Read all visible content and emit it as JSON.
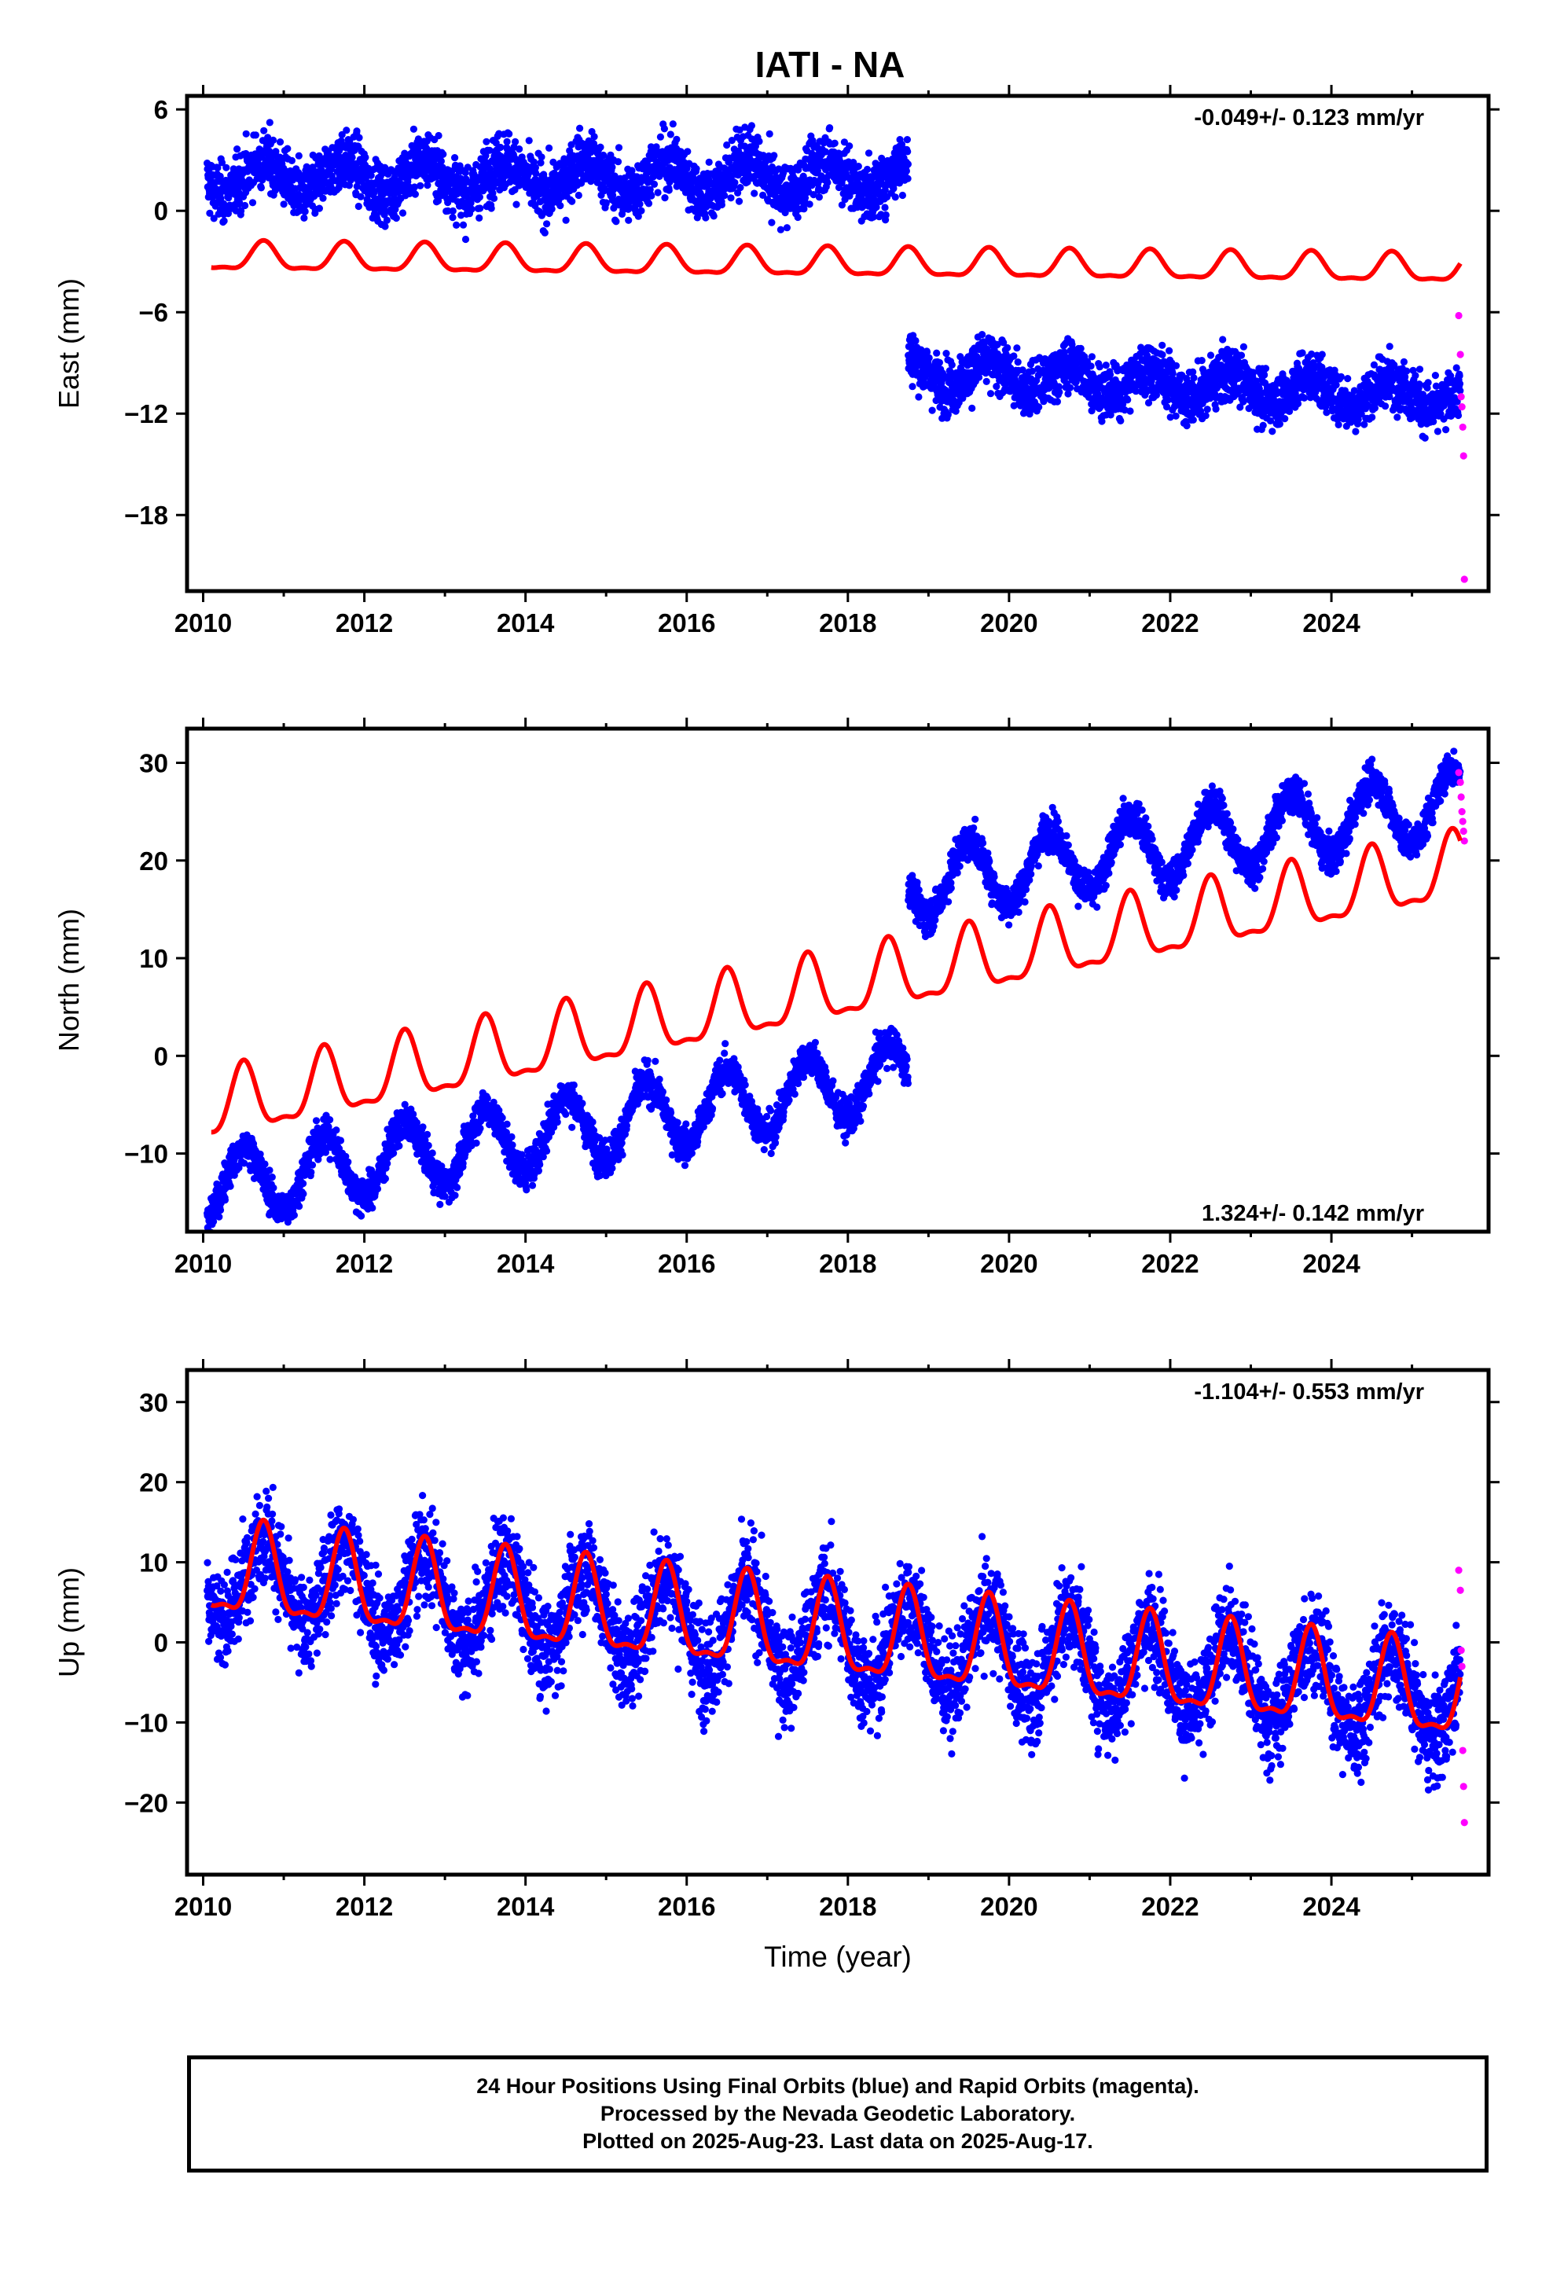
{
  "figure_title": "IATI - NA",
  "footer": {
    "line1": "24 Hour Positions Using Final Orbits (blue) and Rapid Orbits (magenta).",
    "line2": "Processed by the Nevada Geodetic Laboratory.",
    "line3": "Plotted on 2025-Aug-23. Last data on 2025-Aug-17."
  },
  "colors": {
    "final_orbits": "#0000ff",
    "rapid_orbits": "#ff00ff",
    "model": "#ff0000"
  },
  "chart_data": [
    {
      "type": "scatter",
      "ylabel": "East (mm)",
      "xlim": [
        2009.8,
        2025.95
      ],
      "ylim": [
        -22.5,
        6.8
      ],
      "x_ticks": [
        2010,
        2012,
        2014,
        2016,
        2018,
        2020,
        2022,
        2024
      ],
      "y_ticks": [
        6,
        0,
        -6,
        -12,
        -18
      ],
      "rate_annotation": "-0.049+/- 0.123 mm/yr",
      "annotation_position": "top-right",
      "grid": false,
      "offset_epoch": 2018.75,
      "series": [
        {
          "name": "Final Orbits (blue)",
          "color": "#0000ff",
          "segments": [
            {
              "start": 2010.05,
              "end": 2018.75,
              "level_start": 2.0,
              "level_end": 2.0,
              "annual_amp": 1.0,
              "noise": 1.2
            },
            {
              "start": 2018.75,
              "end": 2025.6,
              "level_start": -9.5,
              "level_end": -11.0,
              "annual_amp": 0.8,
              "noise": 1.1
            }
          ]
        },
        {
          "name": "Rapid Orbits (magenta)",
          "color": "#ff00ff",
          "x": [
            2025.58,
            2025.6,
            2025.61,
            2025.62,
            2025.63,
            2025.64,
            2025.65
          ],
          "y": [
            -6.2,
            -8.5,
            -11.0,
            -11.6,
            -12.8,
            -14.5,
            -21.8
          ]
        },
        {
          "name": "Model",
          "color": "#ff0000",
          "kind": "line",
          "start": 2010.1,
          "end": 2025.6,
          "offset_start": -2.8,
          "offset_end": -3.5,
          "annual_amp": 0.8,
          "annual_phase": 2010.75
        }
      ]
    },
    {
      "type": "scatter",
      "ylabel": "North (mm)",
      "xlim": [
        2009.8,
        2025.95
      ],
      "ylim": [
        -18,
        33.5
      ],
      "x_ticks": [
        2010,
        2012,
        2014,
        2016,
        2018,
        2020,
        2022,
        2024
      ],
      "y_ticks": [
        30,
        20,
        10,
        0,
        -10
      ],
      "rate_annotation": "1.324+/- 0.142 mm/yr",
      "annotation_position": "bottom-right",
      "grid": false,
      "offset_epoch": 2018.75,
      "series": [
        {
          "name": "Final Orbits (blue)",
          "color": "#0000ff",
          "segments": [
            {
              "start": 2010.05,
              "end": 2018.75,
              "level_start": -13.5,
              "level_end": -2.0,
              "annual_amp": 3.5,
              "noise": 1.3
            },
            {
              "start": 2018.75,
              "end": 2025.6,
              "level_start": 17.5,
              "level_end": 26.0,
              "annual_amp": 3.5,
              "noise": 1.3
            }
          ]
        },
        {
          "name": "Rapid Orbits (magenta)",
          "color": "#ff00ff",
          "x": [
            2025.58,
            2025.6,
            2025.61,
            2025.62,
            2025.63,
            2025.64,
            2025.65
          ],
          "y": [
            29.0,
            28.0,
            26.5,
            25.0,
            24.0,
            23.0,
            22.0
          ]
        },
        {
          "name": "Model",
          "color": "#ff0000",
          "kind": "line",
          "start": 2010.1,
          "end": 2025.6,
          "offset_start": -5.5,
          "offset_end": 19.0,
          "annual_amp": 3.3,
          "annual_phase": 2010.5
        }
      ]
    },
    {
      "type": "scatter",
      "ylabel": "Up (mm)",
      "xlim": [
        2009.8,
        2025.95
      ],
      "ylim": [
        -29,
        34
      ],
      "x_ticks": [
        2010,
        2012,
        2014,
        2016,
        2018,
        2020,
        2022,
        2024
      ],
      "y_ticks": [
        30,
        20,
        10,
        0,
        -10,
        -20
      ],
      "rate_annotation": "-1.104+/- 0.553 mm/yr",
      "annotation_position": "top-right",
      "xlabel": "Time (year)",
      "grid": false,
      "series": [
        {
          "name": "Final Orbits (blue)",
          "color": "#0000ff",
          "segments": [
            {
              "start": 2010.05,
              "end": 2025.6,
              "level_start": 8.5,
              "level_end": -7.0,
              "annual_amp": 5.5,
              "noise": 4.2
            }
          ]
        },
        {
          "name": "Rapid Orbits (magenta)",
          "color": "#ff00ff",
          "x": [
            2025.58,
            2025.6,
            2025.61,
            2025.62,
            2025.63,
            2025.64,
            2025.65
          ],
          "y": [
            9.0,
            6.5,
            -1.0,
            -3.0,
            -13.5,
            -18.0,
            -22.5
          ]
        },
        {
          "name": "Model",
          "color": "#ff0000",
          "kind": "line",
          "start": 2010.1,
          "end": 2025.6,
          "offset_start": 8.5,
          "offset_end": -7.0,
          "annual_amp": 5.5,
          "annual_phase": 2010.75
        }
      ]
    }
  ]
}
